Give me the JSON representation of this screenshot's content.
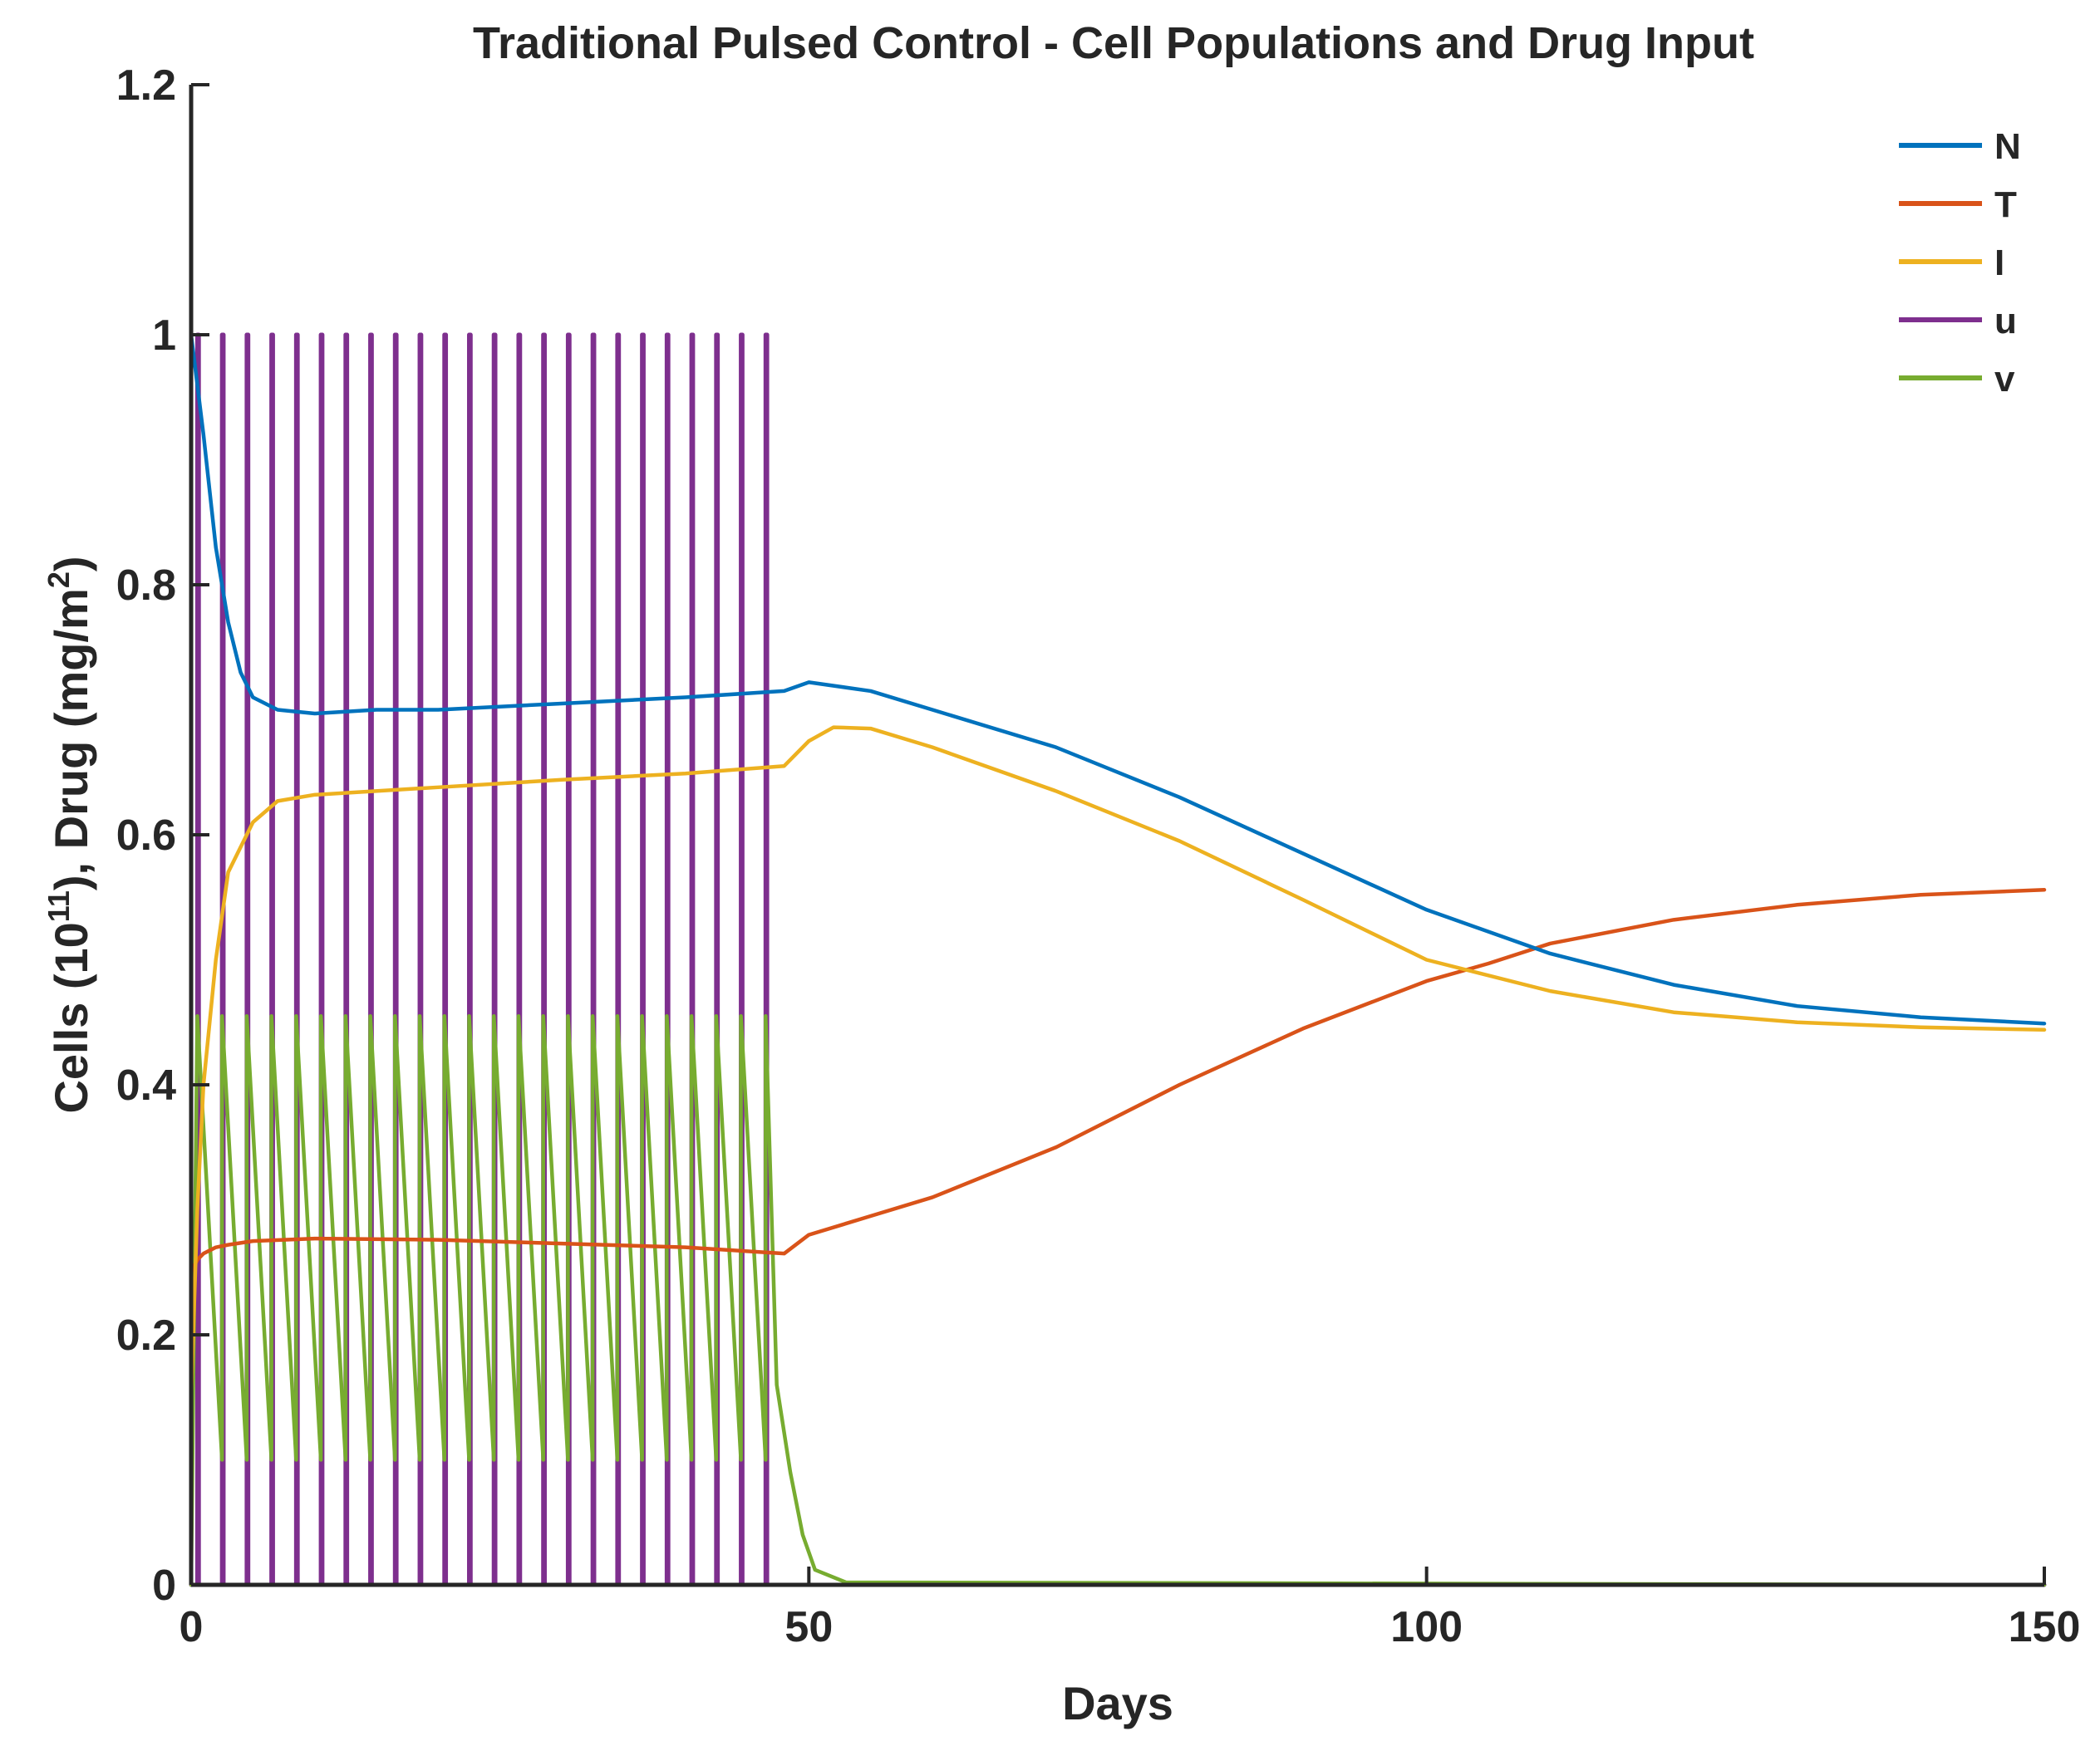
{
  "chart_data": {
    "type": "line",
    "title": "Traditional Pulsed Control - Cell Populations and Drug Input",
    "xlabel": "Days",
    "ylabel": {
      "prefix": "Cells (10",
      "sup1": "11",
      "middle": "), Drug (mg/m",
      "sup2": "2",
      "suffix": ")"
    },
    "xlim": [
      0,
      150
    ],
    "ylim": [
      0,
      1.2
    ],
    "xticks": [
      0,
      50,
      100,
      150
    ],
    "xtick_labels": [
      "0",
      "50",
      "100",
      "150"
    ],
    "yticks": [
      0,
      0.2,
      0.4,
      0.6,
      0.8,
      1,
      1.2
    ],
    "ytick_labels": [
      "0",
      "0.2",
      "0.4",
      "0.6",
      "0.8",
      "1",
      "1.2"
    ],
    "grid": false,
    "legend_position": "top-right",
    "pulses": {
      "count": 24,
      "start": 0.5,
      "period": 2,
      "end": 48
    },
    "series": [
      {
        "name": "N",
        "color": "#0072BD",
        "x": [
          0,
          1,
          2,
          3,
          4,
          5,
          7,
          10,
          15,
          20,
          30,
          40,
          48,
          50,
          55,
          60,
          70,
          80,
          90,
          100,
          110,
          120,
          130,
          140,
          150
        ],
        "y": [
          1.0,
          0.92,
          0.83,
          0.77,
          0.73,
          0.71,
          0.7,
          0.697,
          0.7,
          0.7,
          0.705,
          0.71,
          0.715,
          0.722,
          0.715,
          0.7,
          0.67,
          0.63,
          0.585,
          0.54,
          0.505,
          0.48,
          0.463,
          0.454,
          0.449
        ]
      },
      {
        "name": "T",
        "color": "#D95319",
        "x": [
          0,
          0.5,
          1,
          2,
          3,
          5,
          10,
          20,
          30,
          40,
          48,
          50,
          55,
          60,
          70,
          80,
          90,
          100,
          105,
          110,
          120,
          130,
          140,
          150
        ],
        "y": [
          0.25,
          0.26,
          0.265,
          0.27,
          0.272,
          0.275,
          0.277,
          0.276,
          0.273,
          0.27,
          0.265,
          0.28,
          0.295,
          0.31,
          0.35,
          0.4,
          0.445,
          0.483,
          0.497,
          0.513,
          0.532,
          0.544,
          0.552,
          0.556
        ]
      },
      {
        "name": "I",
        "color": "#EDB120",
        "x": [
          0,
          0.5,
          1,
          2,
          3,
          4,
          5,
          7,
          10,
          20,
          30,
          40,
          48,
          50,
          52,
          55,
          60,
          70,
          80,
          90,
          100,
          110,
          120,
          130,
          140,
          150
        ],
        "y": [
          0.15,
          0.3,
          0.4,
          0.5,
          0.57,
          0.59,
          0.61,
          0.627,
          0.632,
          0.638,
          0.644,
          0.649,
          0.655,
          0.675,
          0.686,
          0.685,
          0.67,
          0.635,
          0.595,
          0.548,
          0.5,
          0.475,
          0.458,
          0.45,
          0.446,
          0.444
        ]
      },
      {
        "name": "u",
        "color": "#7E2F8E",
        "x": [],
        "y": [],
        "pulse_high": 1.0,
        "pulse_low": 0
      },
      {
        "name": "v",
        "color": "#77AC30",
        "x": [],
        "y": [],
        "peak": 0.455,
        "trough": 0.1,
        "decay_end": 53,
        "after": 0
      }
    ]
  }
}
